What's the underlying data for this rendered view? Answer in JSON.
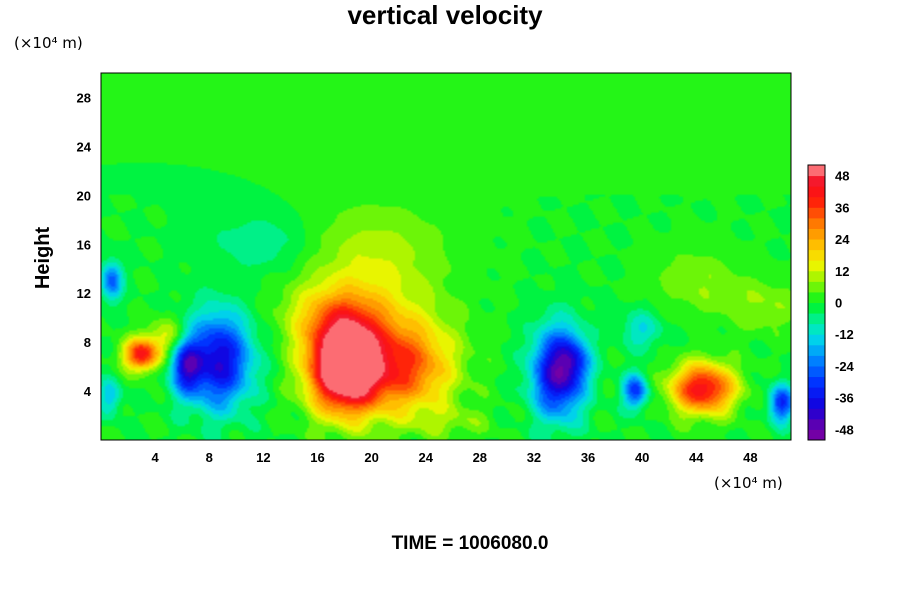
{
  "chart_data": {
    "type": "heatmap",
    "title": "vertical velocity",
    "ylabel": "Height",
    "x_units_label": "(×10⁴ m)",
    "y_units_label": "(×10⁴ m)",
    "footer": "TIME = 1006080.0",
    "xlim": [
      0,
      51
    ],
    "ylim": [
      0,
      30
    ],
    "x_ticks": [
      4,
      8,
      12,
      16,
      20,
      24,
      28,
      32,
      36,
      40,
      44,
      48
    ],
    "y_ticks": [
      4,
      8,
      12,
      16,
      20,
      24,
      28
    ],
    "colorbar": {
      "min": -52,
      "max": 52,
      "levels": 26,
      "ticks": [
        48,
        36,
        24,
        12,
        0,
        -12,
        -24,
        -36,
        -48
      ]
    },
    "features": [
      {
        "x": 18,
        "y": 6,
        "sx": 2.6,
        "sy": 3.6,
        "a": 70
      },
      {
        "x": 22.5,
        "y": 6,
        "sx": 3.5,
        "sy": 3.8,
        "a": 34
      },
      {
        "x": 17.5,
        "y": 10,
        "sx": 3.6,
        "sy": 2.6,
        "a": 18
      },
      {
        "x": 20,
        "y": 14,
        "sx": 5.5,
        "sy": 5,
        "a": 12
      },
      {
        "x": 3,
        "y": 7,
        "sx": 1.3,
        "sy": 1.3,
        "a": 42
      },
      {
        "x": 5,
        "y": 8.5,
        "sx": 1.4,
        "sy": 1.5,
        "a": 14
      },
      {
        "x": 44.5,
        "y": 4.2,
        "sx": 2.3,
        "sy": 2,
        "a": 44
      },
      {
        "x": 49,
        "y": 11,
        "sx": 3,
        "sy": 2.2,
        "a": 8
      },
      {
        "x": 44,
        "y": 13,
        "sx": 3,
        "sy": 2.5,
        "a": 8
      },
      {
        "x": 8.7,
        "y": 6.5,
        "sx": 2.4,
        "sy": 3.8,
        "a": -40
      },
      {
        "x": 6.3,
        "y": 6,
        "sx": 1.1,
        "sy": 2.2,
        "a": -30
      },
      {
        "x": 33.8,
        "y": 5.5,
        "sx": 1.9,
        "sy": 3.6,
        "a": -44
      },
      {
        "x": 35,
        "y": 6.5,
        "sx": 1.2,
        "sy": 1.8,
        "a": -14
      },
      {
        "x": 0.8,
        "y": 13,
        "sx": 0.8,
        "sy": 1.5,
        "a": -26
      },
      {
        "x": 0.7,
        "y": 3.5,
        "sx": 0.8,
        "sy": 1.5,
        "a": -16
      },
      {
        "x": 39.5,
        "y": 4,
        "sx": 0.9,
        "sy": 1.4,
        "a": -30
      },
      {
        "x": 50.3,
        "y": 3,
        "sx": 0.9,
        "sy": 1.5,
        "a": -32
      },
      {
        "x": 26,
        "y": 1.5,
        "sx": 3,
        "sy": 1.2,
        "a": 6
      },
      {
        "x": 40,
        "y": 9,
        "sx": 1.5,
        "sy": 1.6,
        "a": -12
      },
      {
        "x": 12,
        "y": 16,
        "sx": 4,
        "sy": 2.5,
        "a": -8
      }
    ]
  }
}
